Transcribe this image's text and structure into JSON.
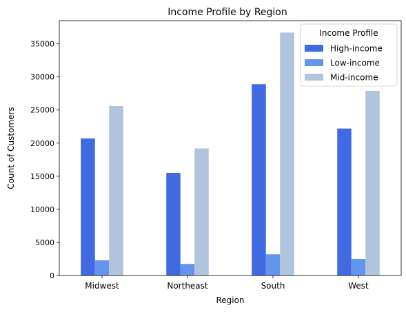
{
  "chart_data": {
    "type": "bar",
    "title": "Income Profile by Region",
    "xlabel": "Region",
    "ylabel": "Count of Customers",
    "categories": [
      "Midwest",
      "Northeast",
      "South",
      "West"
    ],
    "series": [
      {
        "name": "High-income",
        "color": "#4169e1",
        "values": [
          20700,
          15500,
          28900,
          22200
        ]
      },
      {
        "name": "Low-income",
        "color": "#6495ed",
        "values": [
          2300,
          1750,
          3200,
          2500
        ]
      },
      {
        "name": "Mid-income",
        "color": "#b0c4de",
        "values": [
          25600,
          19200,
          36700,
          27900
        ]
      }
    ],
    "ylim": [
      0,
      38500
    ],
    "yticks": [
      0,
      5000,
      10000,
      15000,
      20000,
      25000,
      30000,
      35000
    ],
    "grid": false,
    "legend": {
      "title": "Income Profile",
      "placement": "top-right"
    }
  }
}
